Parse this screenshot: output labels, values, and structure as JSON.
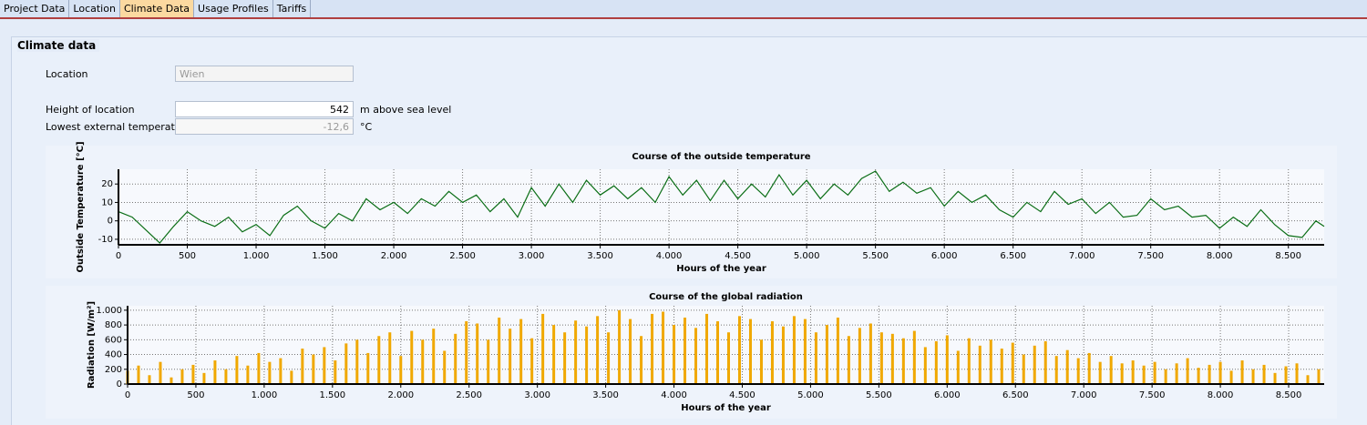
{
  "tabs": [
    "Project Data",
    "Location",
    "Climate Data",
    "Usage Profiles",
    "Tariffs"
  ],
  "active_tab": 2,
  "section_title": "Climate data",
  "fields": [
    {
      "label": "Location",
      "value": "Wien"
    },
    {
      "label": "Height of location",
      "value": "542",
      "unit": "m above sea level"
    },
    {
      "label": "Lowest external temperature",
      "value": "-12,6",
      "unit": "°C"
    }
  ],
  "chart_data": [
    {
      "type": "line",
      "title": "Course of the outside temperature",
      "x_label": "Hours of the year",
      "y_label": "Outside Temperature [°C]",
      "color": "#0b6e16",
      "grid": true,
      "xlim": [
        0,
        8760
      ],
      "ylim": [
        -13,
        28
      ],
      "xticks": [
        0,
        500,
        {
          "value": 1000,
          "label": "1.000"
        },
        {
          "value": 1500,
          "label": "1.500"
        },
        {
          "value": 2000,
          "label": "2.000"
        },
        {
          "value": 2500,
          "label": "2.500"
        },
        {
          "value": 3000,
          "label": "3.000"
        },
        {
          "value": 3500,
          "label": "3.500"
        },
        {
          "value": 4000,
          "label": "4.000"
        },
        {
          "value": 4500,
          "label": "4.500"
        },
        {
          "value": 5000,
          "label": "5.000"
        },
        {
          "value": 5500,
          "label": "5.500"
        },
        {
          "value": 6000,
          "label": "6.000"
        },
        {
          "value": 6500,
          "label": "6.500"
        },
        {
          "value": 7000,
          "label": "7.000"
        },
        {
          "value": 7500,
          "label": "7.500"
        },
        {
          "value": 8000,
          "label": "8.000"
        },
        {
          "value": 8500,
          "label": "8.500"
        }
      ],
      "yticks": [
        -10,
        0,
        10,
        20
      ],
      "x": [
        0,
        100,
        200,
        300,
        400,
        500,
        600,
        700,
        800,
        900,
        1000,
        1100,
        1200,
        1300,
        1400,
        1500,
        1600,
        1700,
        1800,
        1900,
        2000,
        2100,
        2200,
        2300,
        2400,
        2500,
        2600,
        2700,
        2800,
        2900,
        3000,
        3100,
        3200,
        3300,
        3400,
        3500,
        3600,
        3700,
        3800,
        3900,
        4000,
        4100,
        4200,
        4300,
        4400,
        4500,
        4600,
        4700,
        4800,
        4900,
        5000,
        5100,
        5200,
        5300,
        5400,
        5500,
        5600,
        5700,
        5800,
        5900,
        6000,
        6100,
        6200,
        6300,
        6400,
        6500,
        6600,
        6700,
        6800,
        6900,
        7000,
        7100,
        7200,
        7300,
        7400,
        7500,
        7600,
        7700,
        7800,
        7900,
        8000,
        8100,
        8200,
        8300,
        8400,
        8500,
        8600,
        8700,
        8760
      ],
      "values": [
        5,
        2,
        -5,
        -12,
        -3,
        5,
        0,
        -3,
        2,
        -6,
        -2,
        -8,
        3,
        8,
        0,
        -4,
        4,
        0,
        12,
        6,
        10,
        4,
        12,
        8,
        16,
        10,
        14,
        5,
        12,
        2,
        18,
        8,
        20,
        10,
        22,
        14,
        19,
        12,
        18,
        10,
        24,
        14,
        22,
        11,
        22,
        12,
        20,
        13,
        25,
        14,
        22,
        12,
        20,
        14,
        23,
        27,
        16,
        21,
        15,
        18,
        8,
        16,
        10,
        14,
        6,
        2,
        10,
        5,
        16,
        9,
        12,
        4,
        10,
        2,
        3,
        12,
        6,
        8,
        2,
        3,
        -4,
        2,
        -3,
        6,
        -2,
        -8,
        -9,
        0,
        -3
      ]
    },
    {
      "type": "bar",
      "title": "Course of the global radiation",
      "x_label": "Hours of the year",
      "y_label": "Radiation [W/m²]",
      "color": "#f0a800",
      "grid": true,
      "xlim": [
        0,
        8760
      ],
      "ylim": [
        0,
        1060
      ],
      "xticks": [
        0,
        500,
        {
          "value": 1000,
          "label": "1.000"
        },
        {
          "value": 1500,
          "label": "1.500"
        },
        {
          "value": 2000,
          "label": "2.000"
        },
        {
          "value": 2500,
          "label": "2.500"
        },
        {
          "value": 3000,
          "label": "3.000"
        },
        {
          "value": 3500,
          "label": "3.500"
        },
        {
          "value": 4000,
          "label": "4.000"
        },
        {
          "value": 4500,
          "label": "4.500"
        },
        {
          "value": 5000,
          "label": "5.000"
        },
        {
          "value": 5500,
          "label": "5.500"
        },
        {
          "value": 6000,
          "label": "6.000"
        },
        {
          "value": 6500,
          "label": "6.500"
        },
        {
          "value": 7000,
          "label": "7.000"
        },
        {
          "value": 7500,
          "label": "7.500"
        },
        {
          "value": 8000,
          "label": "8.000"
        },
        {
          "value": 8500,
          "label": "8.500"
        }
      ],
      "yticks": [
        0,
        200,
        400,
        600,
        800,
        {
          "value": 1000,
          "label": "1.000"
        }
      ],
      "x": [
        0,
        80,
        160,
        240,
        320,
        400,
        480,
        560,
        640,
        720,
        800,
        880,
        960,
        1040,
        1120,
        1200,
        1280,
        1360,
        1440,
        1520,
        1600,
        1680,
        1760,
        1840,
        1920,
        2000,
        2080,
        2160,
        2240,
        2320,
        2400,
        2480,
        2560,
        2640,
        2720,
        2800,
        2880,
        2960,
        3040,
        3120,
        3200,
        3280,
        3360,
        3440,
        3520,
        3600,
        3680,
        3760,
        3840,
        3920,
        4000,
        4080,
        4160,
        4240,
        4320,
        4400,
        4480,
        4560,
        4640,
        4720,
        4800,
        4880,
        4960,
        5040,
        5120,
        5200,
        5280,
        5360,
        5440,
        5520,
        5600,
        5680,
        5760,
        5840,
        5920,
        6000,
        6080,
        6160,
        6240,
        6320,
        6400,
        6480,
        6560,
        6640,
        6720,
        6800,
        6880,
        6960,
        7040,
        7120,
        7200,
        7280,
        7360,
        7440,
        7520,
        7600,
        7680,
        7760,
        7840,
        7920,
        8000,
        8080,
        8160,
        8240,
        8320,
        8400,
        8480,
        8560,
        8640,
        8720
      ],
      "values": [
        180,
        250,
        120,
        300,
        90,
        200,
        260,
        150,
        320,
        200,
        380,
        250,
        420,
        300,
        350,
        180,
        480,
        400,
        500,
        320,
        550,
        600,
        420,
        650,
        700,
        380,
        720,
        600,
        750,
        450,
        680,
        850,
        820,
        600,
        900,
        750,
        880,
        620,
        950,
        800,
        700,
        860,
        780,
        920,
        700,
        1000,
        880,
        650,
        950,
        980,
        800,
        900,
        760,
        950,
        850,
        700,
        920,
        880,
        600,
        850,
        780,
        920,
        880,
        700,
        800,
        900,
        650,
        760,
        820,
        700,
        680,
        620,
        720,
        500,
        580,
        660,
        450,
        620,
        520,
        600,
        480,
        560,
        400,
        520,
        580,
        380,
        460,
        350,
        420,
        300,
        380,
        280,
        320,
        250,
        300,
        200,
        280,
        350,
        220,
        260,
        300,
        180,
        320,
        200,
        260,
        150,
        240,
        280,
        120,
        200
      ]
    }
  ]
}
